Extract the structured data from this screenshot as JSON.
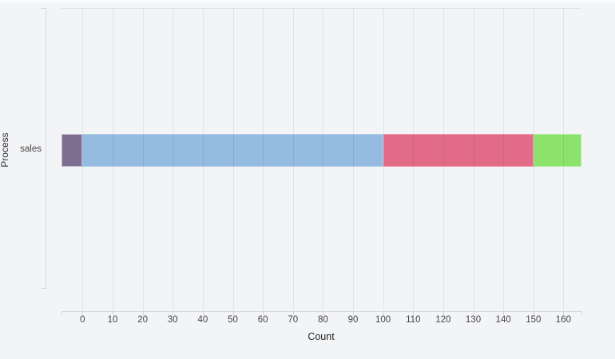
{
  "background": "#f3f4f6",
  "chart_data": {
    "type": "bar",
    "orientation": "horizontal",
    "stacked": true,
    "title": "",
    "xlabel": "Count",
    "ylabel": "Process",
    "categories": [
      "sales"
    ],
    "series": [
      {
        "name": "segment-purple",
        "value": -7,
        "color": "#7d6d8f",
        "border": "#c2b4d0"
      },
      {
        "name": "segment-blue",
        "value": 100,
        "color": "#95bbe1",
        "border": "#aecbe9"
      },
      {
        "name": "segment-rose",
        "value": 50,
        "color": "#e26b88",
        "border": "#ec93a8"
      },
      {
        "name": "segment-green",
        "value": 16,
        "color": "#8ce36c",
        "border": "#b2ee9b"
      }
    ],
    "x_domain": [
      -7,
      166
    ],
    "x_ticks": [
      0,
      10,
      20,
      30,
      40,
      50,
      60,
      70,
      80,
      90,
      100,
      110,
      120,
      130,
      140,
      150,
      160
    ],
    "grid": true,
    "legend": false
  },
  "colors": {
    "grid": "#e2e3e6",
    "axis": "#d7d8db",
    "tick_label": "#454545",
    "axis_title": "#262626"
  }
}
